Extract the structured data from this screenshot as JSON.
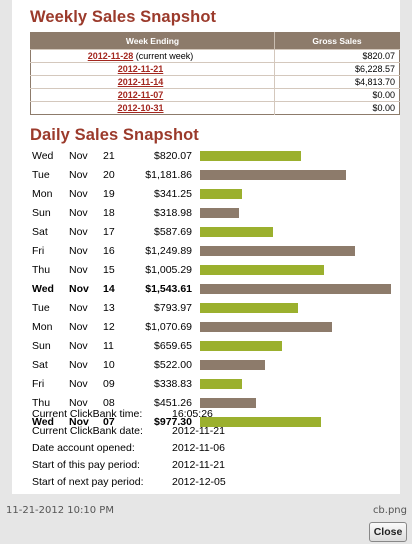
{
  "weekly": {
    "title": "Weekly Sales Snapshot",
    "headers": [
      "Week Ending",
      "Gross Sales"
    ],
    "rows": [
      {
        "week": "2012-11-28",
        "note": "(current week)",
        "sales": "$820.07"
      },
      {
        "week": "2012-11-21",
        "note": "",
        "sales": "$6,228.57"
      },
      {
        "week": "2012-11-14",
        "note": "",
        "sales": "$4,813.70"
      },
      {
        "week": "2012-11-07",
        "note": "",
        "sales": "$0.00"
      },
      {
        "week": "2012-10-31",
        "note": "",
        "sales": "$0.00"
      }
    ]
  },
  "daily": {
    "title": "Daily Sales Snapshot",
    "colors": {
      "current_week": "#9bb02e",
      "prior_week": "#8d7b6b"
    },
    "max_amount": 1543.61,
    "rows": [
      {
        "day": "Wed",
        "month": "Nov",
        "date": "21",
        "amount": "$820.07",
        "value": 820.07,
        "week": "current",
        "bold": false
      },
      {
        "day": "Tue",
        "month": "Nov",
        "date": "20",
        "amount": "$1,181.86",
        "value": 1181.86,
        "week": "prior",
        "bold": false
      },
      {
        "day": "Mon",
        "month": "Nov",
        "date": "19",
        "amount": "$341.25",
        "value": 341.25,
        "week": "current",
        "bold": false
      },
      {
        "day": "Sun",
        "month": "Nov",
        "date": "18",
        "amount": "$318.98",
        "value": 318.98,
        "week": "prior",
        "bold": false
      },
      {
        "day": "Sat",
        "month": "Nov",
        "date": "17",
        "amount": "$587.69",
        "value": 587.69,
        "week": "current",
        "bold": false
      },
      {
        "day": "Fri",
        "month": "Nov",
        "date": "16",
        "amount": "$1,249.89",
        "value": 1249.89,
        "week": "prior",
        "bold": false
      },
      {
        "day": "Thu",
        "month": "Nov",
        "date": "15",
        "amount": "$1,005.29",
        "value": 1005.29,
        "week": "current",
        "bold": false
      },
      {
        "day": "Wed",
        "month": "Nov",
        "date": "14",
        "amount": "$1,543.61",
        "value": 1543.61,
        "week": "prior",
        "bold": true
      },
      {
        "day": "Tue",
        "month": "Nov",
        "date": "13",
        "amount": "$793.97",
        "value": 793.97,
        "week": "current",
        "bold": false
      },
      {
        "day": "Mon",
        "month": "Nov",
        "date": "12",
        "amount": "$1,070.69",
        "value": 1070.69,
        "week": "prior",
        "bold": false
      },
      {
        "day": "Sun",
        "month": "Nov",
        "date": "11",
        "amount": "$659.65",
        "value": 659.65,
        "week": "current",
        "bold": false
      },
      {
        "day": "Sat",
        "month": "Nov",
        "date": "10",
        "amount": "$522.00",
        "value": 522.0,
        "week": "prior",
        "bold": false
      },
      {
        "day": "Fri",
        "month": "Nov",
        "date": "09",
        "amount": "$338.83",
        "value": 338.83,
        "week": "current",
        "bold": false
      },
      {
        "day": "Thu",
        "month": "Nov",
        "date": "08",
        "amount": "$451.26",
        "value": 451.26,
        "week": "prior",
        "bold": false
      },
      {
        "day": "Wed",
        "month": "Nov",
        "date": "07",
        "amount": "$977.30",
        "value": 977.3,
        "week": "current",
        "bold": true
      }
    ]
  },
  "info": [
    {
      "label": "Current ClickBank time:",
      "value": "16:05:26"
    },
    {
      "label": "Current ClickBank date:",
      "value": "2012-11-21"
    },
    {
      "label": "Date account opened:",
      "value": "2012-11-06"
    },
    {
      "label": "Start of this pay period:",
      "value": "2012-11-21"
    },
    {
      "label": "Start of next pay period:",
      "value": "2012-12-05"
    }
  ],
  "footer": {
    "timestamp": "11-21-2012 10:10 PM",
    "filename": "cb.png",
    "close_label": "Close"
  }
}
